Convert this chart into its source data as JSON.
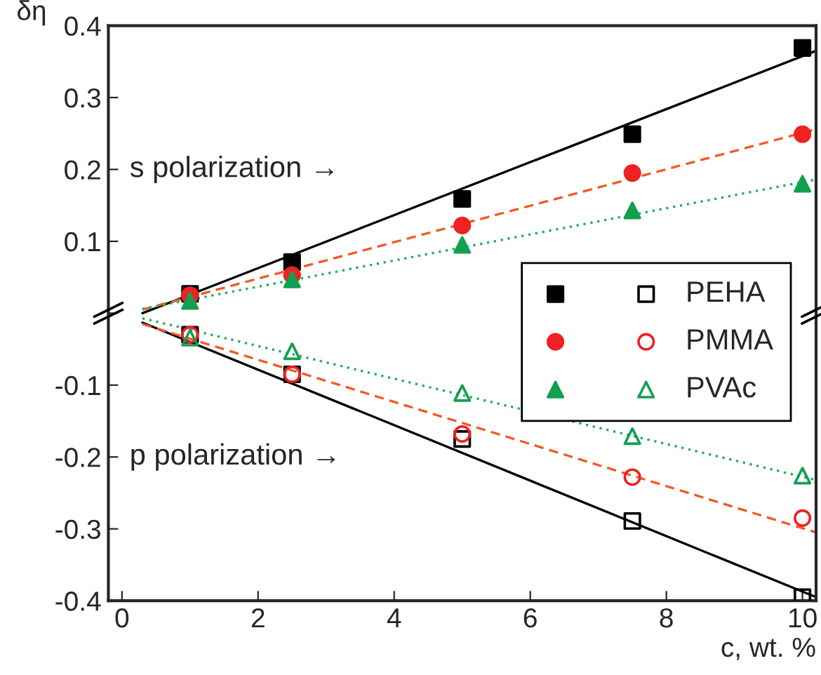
{
  "chart_data": {
    "type": "scatter",
    "xlabel": "c, wt. %",
    "ylabel": "δη",
    "xlim": [
      -0.2,
      10.2
    ],
    "ylim": [
      -0.4,
      0.4
    ],
    "xticks": [
      0,
      2,
      4,
      6,
      8,
      10
    ],
    "yticks": [
      -0.4,
      -0.3,
      -0.2,
      -0.1,
      {
        "value": 0,
        "label": null
      },
      0.1,
      0.2,
      0.3,
      0.4
    ],
    "grid": false,
    "legend": "right",
    "series": [
      {
        "name": "PEHA",
        "color": "#000000",
        "marker": "square",
        "x": [
          1,
          2.5,
          5,
          7.5,
          10
        ],
        "values": [
          0.027,
          0.071,
          0.159,
          0.249,
          0.369
        ]
      },
      {
        "color": "#000000",
        "marker": "square",
        "x": [
          1,
          2.5,
          5,
          7.5,
          10
        ],
        "values": [
          -0.03,
          -0.085,
          -0.175,
          -0.289,
          -0.395
        ]
      },
      {
        "name": "PMMA",
        "color": "#ee2222",
        "marker": "circle",
        "x": [
          1,
          2.5,
          5,
          7.5,
          10
        ],
        "values": [
          0.025,
          0.053,
          0.122,
          0.195,
          0.249
        ]
      },
      {
        "color": "#ee2222",
        "marker": "circle",
        "x": [
          1,
          2.5,
          5,
          7.5,
          10
        ],
        "values": [
          -0.03,
          -0.085,
          -0.168,
          -0.228,
          -0.285
        ]
      },
      {
        "name": "PVAc",
        "color": "#11a050",
        "marker": "triangle",
        "x": [
          1,
          2.5,
          5,
          7.5,
          10
        ],
        "values": [
          0.017,
          0.047,
          0.095,
          0.143,
          0.18
        ]
      },
      {
        "color": "#11a050",
        "marker": "triangle",
        "x": [
          1,
          2.5,
          5,
          7.5,
          10
        ],
        "values": [
          -0.034,
          -0.053,
          -0.111,
          -0.171,
          -0.226
        ]
      },
      {
        "type": "line",
        "color": "#000000",
        "line_style": "solid",
        "x": [
          0.3,
          10.2
        ],
        "values": [
          0.0,
          0.365
        ]
      },
      {
        "type": "line",
        "color": "#f05a28",
        "line_style": "dashed",
        "x": [
          0.3,
          10.2
        ],
        "values": [
          0.005,
          0.256
        ]
      },
      {
        "type": "line",
        "color": "#22b05a",
        "line_style": "dotted",
        "x": [
          0.3,
          10.2
        ],
        "values": [
          0.006,
          0.186
        ]
      },
      {
        "type": "line",
        "color": "#000000",
        "line_style": "solid",
        "x": [
          0.3,
          10.2
        ],
        "values": [
          -0.013,
          -0.395
        ]
      },
      {
        "type": "line",
        "color": "#f05a28",
        "line_style": "dashed",
        "x": [
          0.3,
          10.2
        ],
        "values": [
          -0.015,
          -0.305
        ]
      },
      {
        "type": "line",
        "color": "#22b05a",
        "line_style": "dotted",
        "x": [
          0.3,
          10.2
        ],
        "values": [
          -0.007,
          -0.232
        ]
      }
    ],
    "annotations": [
      "s polarization →",
      "p polarization →"
    ]
  }
}
